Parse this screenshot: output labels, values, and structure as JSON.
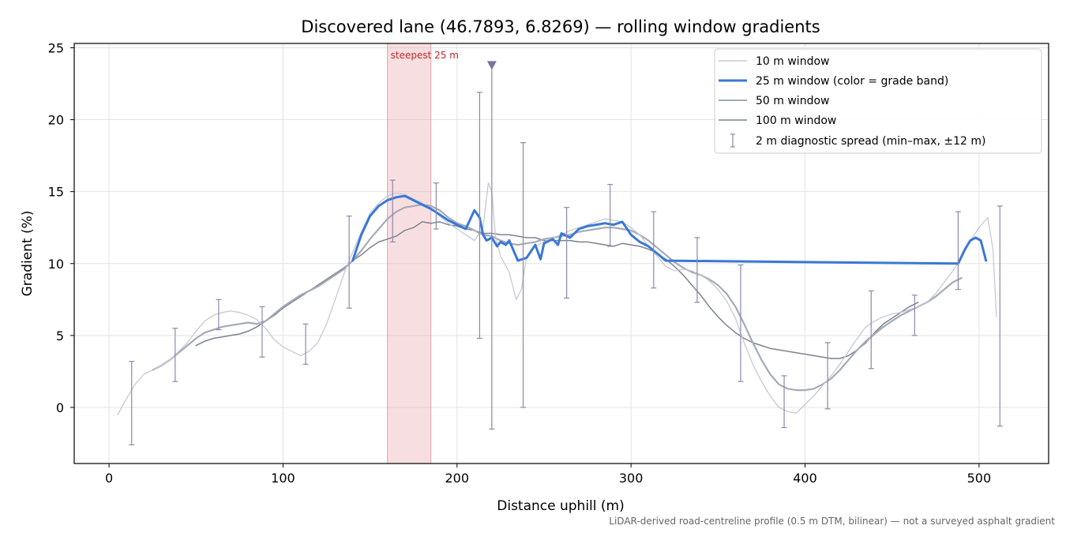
{
  "chart_data": {
    "type": "line",
    "title": "Discovered lane (46.7893, 6.8269) — rolling window gradients",
    "xlabel": "Distance uphill (m)",
    "ylabel": "Gradient (%)",
    "xlim": [
      -20,
      540
    ],
    "ylim": [
      -3.9,
      25.3
    ],
    "x_ticks": [
      0,
      100,
      200,
      300,
      400,
      500
    ],
    "y_ticks": [
      0,
      5,
      10,
      15,
      20,
      25
    ],
    "grid": true,
    "legend_position": "top-right",
    "caption": "LiDAR-derived road-centreline profile (0.5 m DTM, bilinear) — not a surveyed asphalt gradient",
    "highlight": {
      "x_start": 160,
      "x_end": 185,
      "label": "steepest 25 m",
      "color": "#e8a2a8"
    },
    "marker": {
      "x": 220,
      "y": 23.8,
      "shape": "down-triangle",
      "color": "#7b74a0"
    },
    "series": [
      {
        "name": "10 m window",
        "color": "#c5cad3",
        "x": [
          5,
          10,
          15,
          20,
          25,
          30,
          35,
          40,
          45,
          50,
          55,
          60,
          65,
          70,
          75,
          80,
          85,
          90,
          95,
          100,
          105,
          110,
          115,
          120,
          125,
          130,
          135,
          140,
          145,
          150,
          155,
          160,
          165,
          170,
          175,
          180,
          185,
          190,
          195,
          200,
          205,
          210,
          215,
          218,
          220,
          222,
          225,
          230,
          234,
          237,
          240,
          245,
          250,
          255,
          260,
          265,
          270,
          275,
          280,
          285,
          290,
          295,
          300,
          305,
          310,
          315,
          320,
          325,
          330,
          335,
          340,
          345,
          350,
          355,
          360,
          365,
          370,
          375,
          380,
          385,
          390,
          395,
          400,
          405,
          410,
          415,
          420,
          425,
          430,
          435,
          440,
          445,
          450,
          455,
          460,
          465,
          470,
          475,
          480,
          485,
          490,
          495,
          500,
          505,
          508,
          510
        ],
        "values": [
          -0.5,
          0.6,
          1.6,
          2.3,
          2.6,
          2.9,
          3.3,
          3.9,
          4.5,
          5.3,
          6.0,
          6.4,
          6.6,
          6.7,
          6.6,
          6.4,
          6.1,
          5.5,
          4.7,
          4.2,
          3.9,
          3.6,
          3.9,
          4.5,
          5.8,
          7.5,
          9.3,
          10.8,
          12.2,
          13.5,
          14.2,
          14.7,
          14.9,
          14.8,
          14.5,
          14.2,
          13.8,
          13.3,
          12.8,
          12.4,
          12.0,
          11.6,
          12.5,
          15.6,
          15.0,
          12.0,
          10.5,
          9.4,
          7.5,
          8.2,
          10.5,
          11.2,
          11.5,
          11.8,
          12.0,
          12.3,
          12.5,
          12.7,
          12.9,
          13.1,
          13.0,
          12.9,
          12.5,
          12.0,
          11.2,
          10.5,
          9.8,
          9.5,
          9.6,
          9.5,
          9.2,
          8.8,
          8.2,
          7.4,
          6.2,
          4.5,
          3.0,
          1.8,
          0.8,
          0.0,
          -0.3,
          -0.4,
          0.2,
          0.8,
          1.5,
          2.2,
          3.0,
          3.9,
          4.8,
          5.6,
          6.0,
          6.3,
          6.5,
          6.6,
          6.8,
          7.0,
          7.3,
          7.9,
          8.7,
          9.5,
          10.4,
          11.6,
          12.5,
          13.2,
          11.0,
          6.3
        ]
      },
      {
        "name": "25 m window (color = grade band)",
        "color": "#3a78d6",
        "x": [
          140,
          145,
          150,
          155,
          160,
          165,
          170,
          175,
          180,
          185,
          190,
          195,
          200,
          205,
          210,
          213,
          215,
          217,
          220,
          223,
          225,
          228,
          230,
          235,
          240,
          245,
          248,
          250,
          255,
          258,
          260,
          265,
          270,
          275,
          280,
          285,
          290,
          295,
          300,
          305,
          310,
          315,
          320,
          488,
          492,
          495,
          498,
          501,
          504
        ],
        "values": [
          10.2,
          12.0,
          13.3,
          14.0,
          14.4,
          14.6,
          14.7,
          14.4,
          14.1,
          13.8,
          13.4,
          13.0,
          12.7,
          12.4,
          13.7,
          13.2,
          12.0,
          11.6,
          11.8,
          11.2,
          11.5,
          11.3,
          11.6,
          10.2,
          10.4,
          11.3,
          10.3,
          11.4,
          11.7,
          11.3,
          12.1,
          11.8,
          12.4,
          12.6,
          12.7,
          12.8,
          12.7,
          12.9,
          12.0,
          11.5,
          11.2,
          10.7,
          10.2,
          10.0,
          11.0,
          11.6,
          11.8,
          11.6,
          10.2
        ]
      },
      {
        "name": "50 m window",
        "color": "#a4abb7",
        "x": [
          25,
          30,
          35,
          40,
          45,
          50,
          55,
          60,
          65,
          70,
          75,
          80,
          85,
          90,
          95,
          100,
          105,
          110,
          115,
          120,
          125,
          130,
          135,
          140,
          145,
          150,
          155,
          160,
          165,
          170,
          175,
          180,
          185,
          190,
          195,
          200,
          205,
          210,
          215,
          220,
          225,
          230,
          235,
          240,
          245,
          250,
          255,
          260,
          265,
          270,
          275,
          280,
          285,
          290,
          295,
          300,
          305,
          310,
          315,
          320,
          325,
          330,
          335,
          340,
          345,
          350,
          355,
          360,
          365,
          370,
          375,
          380,
          385,
          390,
          395,
          400,
          405,
          410,
          415,
          420,
          425,
          430,
          435,
          440,
          445,
          450,
          455,
          460,
          465,
          470,
          475,
          480,
          485,
          490
        ],
        "values": [
          2.6,
          2.9,
          3.3,
          3.8,
          4.3,
          4.8,
          5.2,
          5.4,
          5.6,
          5.7,
          5.8,
          5.9,
          5.8,
          6.0,
          6.5,
          7.0,
          7.4,
          7.8,
          8.1,
          8.4,
          8.8,
          9.2,
          9.6,
          10.2,
          10.9,
          11.7,
          12.4,
          13.1,
          13.6,
          13.9,
          14.0,
          14.1,
          14.0,
          13.7,
          13.2,
          12.8,
          12.6,
          12.3,
          12.0,
          11.9,
          11.6,
          11.4,
          11.3,
          11.4,
          11.5,
          11.7,
          11.8,
          11.9,
          12.0,
          12.2,
          12.3,
          12.4,
          12.5,
          12.5,
          12.4,
          12.3,
          12.0,
          11.6,
          11.1,
          10.6,
          10.1,
          9.7,
          9.4,
          9.2,
          8.9,
          8.5,
          7.9,
          7.0,
          5.8,
          4.5,
          3.3,
          2.3,
          1.6,
          1.3,
          1.2,
          1.2,
          1.3,
          1.6,
          2.0,
          2.6,
          3.3,
          4.0,
          4.6,
          5.1,
          5.6,
          6.0,
          6.4,
          6.7,
          7.0,
          7.3,
          7.7,
          8.2,
          8.7,
          9.0
        ]
      },
      {
        "name": "100 m window",
        "color": "#7d838f",
        "x": [
          50,
          55,
          60,
          65,
          70,
          75,
          80,
          85,
          90,
          95,
          100,
          105,
          110,
          115,
          120,
          125,
          130,
          135,
          140,
          145,
          150,
          155,
          160,
          165,
          170,
          175,
          180,
          185,
          190,
          195,
          200,
          205,
          210,
          215,
          220,
          225,
          230,
          235,
          240,
          245,
          250,
          255,
          260,
          265,
          270,
          275,
          280,
          285,
          290,
          295,
          300,
          305,
          310,
          315,
          320,
          325,
          330,
          335,
          340,
          345,
          350,
          355,
          360,
          365,
          370,
          375,
          380,
          385,
          390,
          395,
          400,
          405,
          410,
          415,
          420,
          425,
          430,
          435,
          440,
          445,
          450,
          455,
          460,
          465
        ],
        "values": [
          4.3,
          4.6,
          4.8,
          4.9,
          5.0,
          5.1,
          5.3,
          5.6,
          6.0,
          6.4,
          6.9,
          7.3,
          7.7,
          8.1,
          8.5,
          8.9,
          9.3,
          9.7,
          10.2,
          10.6,
          11.1,
          11.5,
          11.7,
          11.9,
          12.3,
          12.5,
          12.9,
          12.8,
          12.9,
          12.7,
          12.6,
          12.4,
          12.3,
          12.1,
          12.1,
          12.0,
          12.0,
          11.9,
          11.8,
          11.8,
          11.6,
          11.6,
          11.6,
          11.6,
          11.5,
          11.5,
          11.4,
          11.3,
          11.2,
          11.4,
          11.3,
          11.2,
          11.0,
          10.7,
          10.3,
          9.8,
          9.2,
          8.5,
          7.8,
          7.0,
          6.3,
          5.7,
          5.2,
          4.8,
          4.5,
          4.3,
          4.1,
          4.0,
          3.9,
          3.8,
          3.7,
          3.6,
          3.5,
          3.4,
          3.4,
          3.6,
          4.0,
          4.5,
          5.2,
          5.8,
          6.2,
          6.6,
          7.0,
          7.3
        ]
      }
    ],
    "error_bars": {
      "name": "2 m diagnostic spread (min–max, ±12 m)",
      "color": "#8e87ad",
      "x": [
        13,
        38,
        63,
        88,
        113,
        138,
        163,
        188,
        213,
        220,
        238,
        263,
        288,
        313,
        338,
        363,
        388,
        413,
        438,
        463,
        488,
        512
      ],
      "low": [
        -2.6,
        1.8,
        5.4,
        3.5,
        3.0,
        6.9,
        11.5,
        12.4,
        4.8,
        -1.5,
        0.0,
        7.6,
        11.2,
        8.3,
        7.3,
        1.8,
        -1.4,
        -0.1,
        2.7,
        5.0,
        8.2,
        -1.3
      ],
      "high": [
        3.2,
        5.5,
        7.5,
        7.0,
        5.8,
        13.3,
        15.8,
        15.6,
        21.9,
        23.8,
        18.4,
        13.9,
        15.5,
        13.6,
        11.8,
        9.9,
        2.2,
        4.5,
        8.1,
        7.8,
        13.6,
        14.0
      ]
    }
  }
}
